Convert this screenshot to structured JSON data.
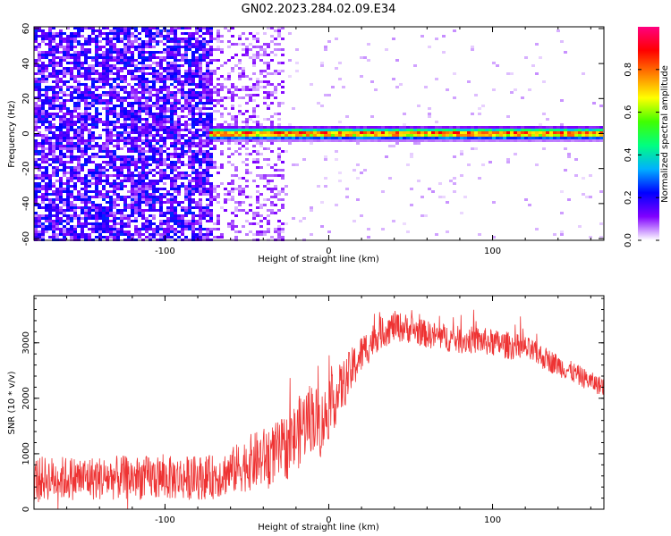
{
  "figure": {
    "title": "GN02.2023.284.02.09.E34"
  },
  "chart_data": [
    {
      "type": "heatmap",
      "title": "GN02.2023.284.02.09.E34",
      "xlabel": "Height of straight line (km)",
      "ylabel": "Frequency (Hz)",
      "xlim": [
        -180,
        168
      ],
      "ylim": [
        -61,
        61
      ],
      "xticks": [
        -100,
        0,
        100
      ],
      "yticks": [
        -60,
        -40,
        -20,
        0,
        20,
        40,
        60
      ],
      "regions": [
        {
          "x": [
            -180,
            -70
          ],
          "description_level": "dense noise",
          "amplitude_range": [
            0.05,
            0.25
          ]
        },
        {
          "x": [
            -70,
            -28
          ],
          "description_level": "sparse noise",
          "amplitude_range": [
            0.02,
            0.12
          ]
        },
        {
          "x": [
            -28,
            168
          ],
          "description_level": "near empty",
          "amplitude_range": [
            0.0,
            0.05
          ]
        }
      ],
      "signal_band": {
        "x": [
          -72,
          168
        ],
        "frequency_center": 0,
        "frequency_halfwidth": 3,
        "peak_amplitude": 0.9
      },
      "colorbar": {
        "label": "Normalized spectral amplitude",
        "range": [
          0.0,
          1.0
        ],
        "ticks": [
          0.0,
          0.2,
          0.4,
          0.6,
          0.8
        ],
        "tick_labels": [
          "0.0",
          "0.2",
          "0.4",
          "0.6",
          "0.8"
        ],
        "colormap": [
          "#ffffff",
          "#8000ff",
          "#0000ff",
          "#00b0ff",
          "#00ff80",
          "#40ff00",
          "#ffff00",
          "#ff8000",
          "#ff0000",
          "#ff0080"
        ]
      }
    },
    {
      "type": "line",
      "xlabel": "Height of straight line (km)",
      "ylabel": "SNR (10 * v/v)",
      "xlim": [
        -180,
        168
      ],
      "ylim": [
        0,
        3850
      ],
      "xticks": [
        -100,
        0,
        100
      ],
      "yticks": [
        0,
        1000,
        2000,
        3000
      ],
      "color": "#ee3333",
      "series": [
        {
          "x": [
            -180,
            -160,
            -140,
            -120,
            -100,
            -80,
            -70,
            -60,
            -50,
            -40,
            -30,
            -25,
            -20,
            -15,
            -10,
            -5,
            0,
            10,
            20,
            30,
            40,
            50,
            60,
            70,
            80,
            90,
            100,
            110,
            120,
            130,
            140,
            150,
            160,
            168
          ],
          "values": [
            550,
            560,
            560,
            570,
            560,
            570,
            580,
            680,
            820,
            920,
            1050,
            1150,
            1300,
            1550,
            1700,
            1500,
            1800,
            2300,
            2800,
            3150,
            3300,
            3250,
            3150,
            3100,
            3050,
            3050,
            3000,
            2950,
            2900,
            2750,
            2600,
            2450,
            2300,
            2200
          ],
          "noise": [
            400,
            400,
            400,
            400,
            400,
            400,
            400,
            420,
            500,
            550,
            550,
            600,
            650,
            650,
            650,
            600,
            550,
            450,
            350,
            300,
            280,
            260,
            250,
            250,
            250,
            250,
            250,
            250,
            230,
            220,
            200,
            190,
            180,
            170
          ]
        }
      ]
    }
  ]
}
